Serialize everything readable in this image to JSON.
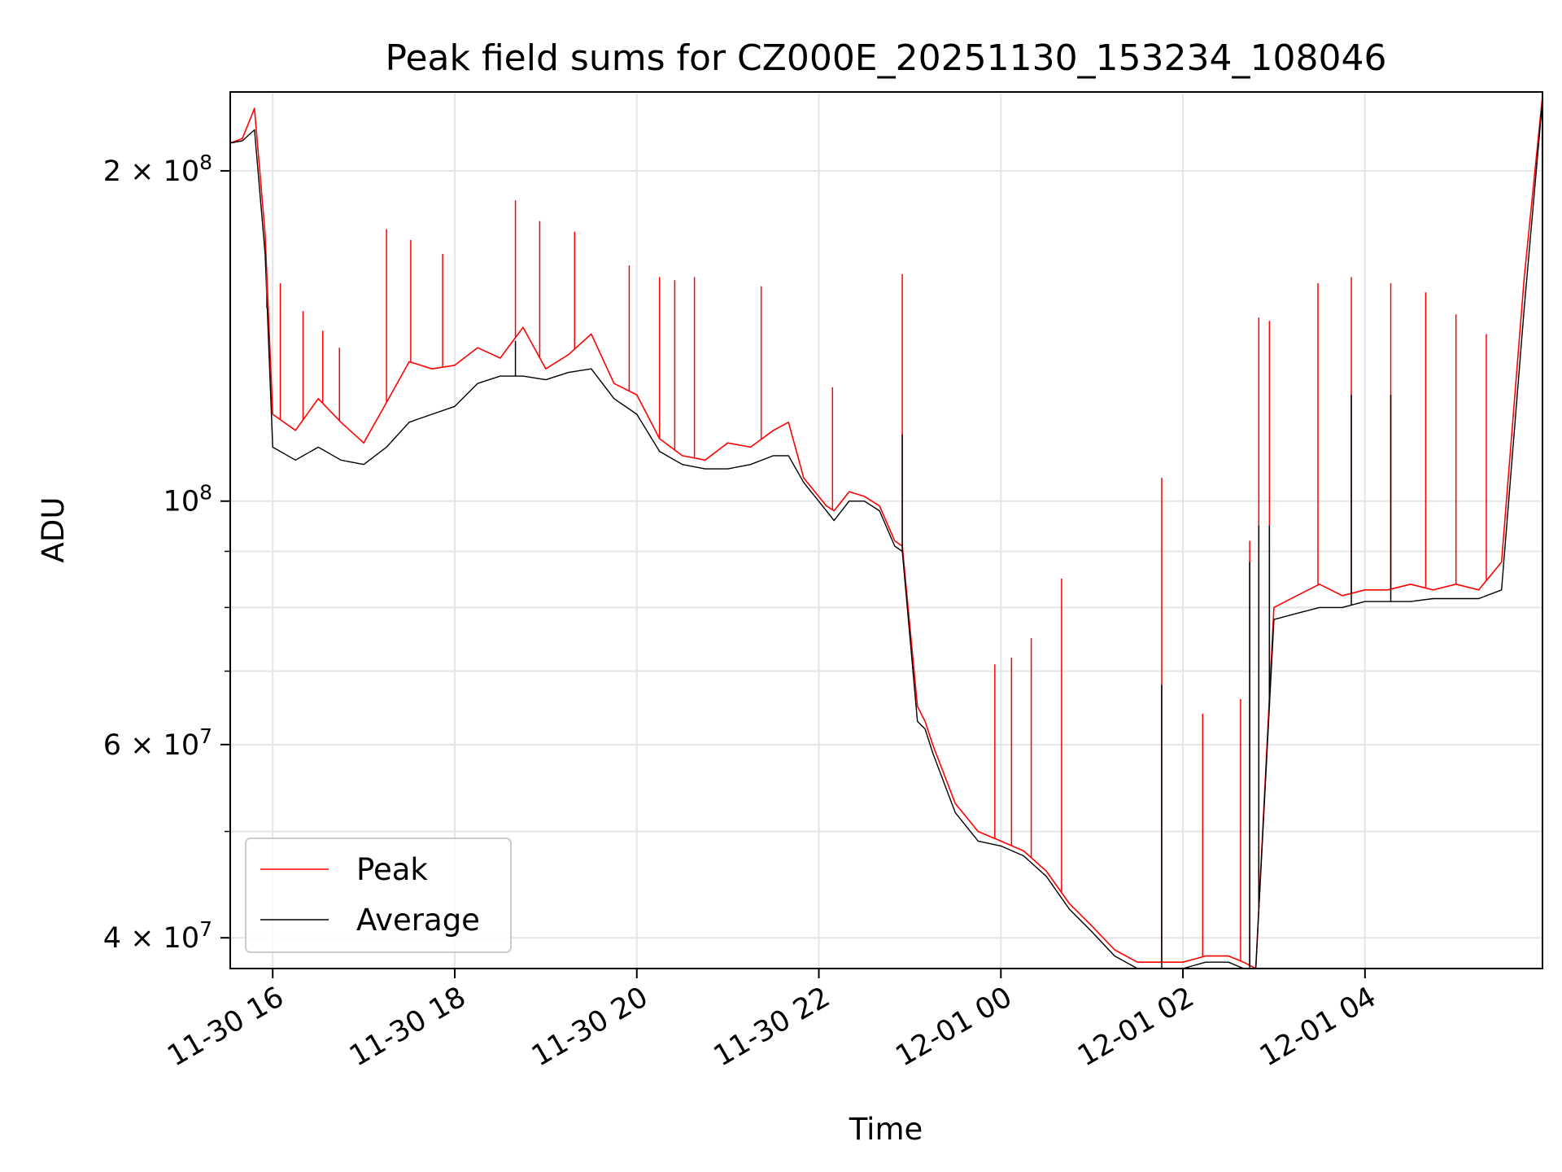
{
  "chart_data": {
    "type": "line",
    "title": "Peak field sums for CZ000E_20251130_153234_108046",
    "xlabel": "Time",
    "ylabel": "ADU",
    "yscale": "log",
    "xlim": [
      "2025-11-30 15:32",
      "2025-12-01 05:57"
    ],
    "ylim": [
      37500000,
      236000000
    ],
    "grid": true,
    "legend_position": "lower-left",
    "x_ticks": [
      {
        "label": "11-30 16",
        "value": "2025-11-30 16:00"
      },
      {
        "label": "11-30 18",
        "value": "2025-11-30 18:00"
      },
      {
        "label": "11-30 20",
        "value": "2025-11-30 20:00"
      },
      {
        "label": "11-30 22",
        "value": "2025-11-30 22:00"
      },
      {
        "label": "12-01 00",
        "value": "2025-12-01 00:00"
      },
      {
        "label": "12-01 02",
        "value": "2025-12-01 02:00"
      },
      {
        "label": "12-01 04",
        "value": "2025-12-01 04:00"
      }
    ],
    "y_major_ticks": [
      {
        "label": "4 × 10^7",
        "base": "4 × 10",
        "exp": "7",
        "value": 40000000
      },
      {
        "label": "6 × 10^7",
        "base": "6 × 10",
        "exp": "7",
        "value": 60000000
      },
      {
        "label": "10^8",
        "base": "10",
        "exp": "8",
        "value": 100000000
      },
      {
        "label": "2 × 10^8",
        "base": "2 × 10",
        "exp": "8",
        "value": 200000000
      }
    ],
    "y_minor_ticks": [
      50000000,
      70000000,
      80000000,
      90000000
    ],
    "series": [
      {
        "name": "Peak",
        "color": "#ff0000",
        "x": [
          "2025-11-30 15:32",
          "2025-11-30 15:40",
          "2025-11-30 15:48",
          "2025-11-30 15:55",
          "2025-11-30 16:00",
          "2025-11-30 16:15",
          "2025-11-30 16:30",
          "2025-11-30 16:45",
          "2025-11-30 17:00",
          "2025-11-30 17:15",
          "2025-11-30 17:30",
          "2025-11-30 17:45",
          "2025-11-30 18:00",
          "2025-11-30 18:15",
          "2025-11-30 18:30",
          "2025-11-30 18:45",
          "2025-11-30 19:00",
          "2025-11-30 19:15",
          "2025-11-30 19:30",
          "2025-11-30 19:45",
          "2025-11-30 20:00",
          "2025-11-30 20:15",
          "2025-11-30 20:30",
          "2025-11-30 20:45",
          "2025-11-30 21:00",
          "2025-11-30 21:15",
          "2025-11-30 21:30",
          "2025-11-30 21:40",
          "2025-11-30 21:50",
          "2025-11-30 22:05",
          "2025-11-30 22:10",
          "2025-11-30 22:20",
          "2025-11-30 22:30",
          "2025-11-30 22:40",
          "2025-11-30 22:50",
          "2025-11-30 22:55",
          "2025-11-30 23:05",
          "2025-11-30 23:10",
          "2025-11-30 23:15",
          "2025-11-30 23:30",
          "2025-11-30 23:45",
          "2025-12-01 00:00",
          "2025-12-01 00:15",
          "2025-12-01 00:30",
          "2025-12-01 00:45",
          "2025-12-01 01:00",
          "2025-12-01 01:15",
          "2025-12-01 01:30",
          "2025-12-01 01:45",
          "2025-12-01 02:00",
          "2025-12-01 02:15",
          "2025-12-01 02:30",
          "2025-12-01 02:40",
          "2025-12-01 02:48",
          "2025-12-01 03:00",
          "2025-12-01 03:15",
          "2025-12-01 03:30",
          "2025-12-01 03:45",
          "2025-12-01 04:00",
          "2025-12-01 04:15",
          "2025-12-01 04:30",
          "2025-12-01 04:45",
          "2025-12-01 05:00",
          "2025-12-01 05:15",
          "2025-12-01 05:30",
          "2025-12-01 05:45",
          "2025-12-01 05:57"
        ],
        "y": [
          212000000,
          214000000,
          228000000,
          175000000,
          120000000,
          116000000,
          124000000,
          118000000,
          113000000,
          123000000,
          134000000,
          132000000,
          133000000,
          138000000,
          135000000,
          144000000,
          132000000,
          136000000,
          142000000,
          128000000,
          125000000,
          114000000,
          110000000,
          109000000,
          113000000,
          112000000,
          116000000,
          118000000,
          105000000,
          99000000,
          98000000,
          102000000,
          101000000,
          99000000,
          92000000,
          91000000,
          65000000,
          63000000,
          60000000,
          53000000,
          50000000,
          49000000,
          48000000,
          46000000,
          43000000,
          41000000,
          39000000,
          38000000,
          38000000,
          38000000,
          38500000,
          38500000,
          38000000,
          37500000,
          80000000,
          82000000,
          84000000,
          82000000,
          83000000,
          83000000,
          84000000,
          83000000,
          84000000,
          83000000,
          88000000,
          160000000,
          234000000
        ]
      },
      {
        "name": "Average",
        "color": "#000000",
        "x": [
          "2025-11-30 15:32",
          "2025-11-30 15:40",
          "2025-11-30 15:48",
          "2025-11-30 15:55",
          "2025-11-30 16:00",
          "2025-11-30 16:15",
          "2025-11-30 16:30",
          "2025-11-30 16:45",
          "2025-11-30 17:00",
          "2025-11-30 17:15",
          "2025-11-30 17:30",
          "2025-11-30 17:45",
          "2025-11-30 18:00",
          "2025-11-30 18:15",
          "2025-11-30 18:30",
          "2025-11-30 18:45",
          "2025-11-30 19:00",
          "2025-11-30 19:15",
          "2025-11-30 19:30",
          "2025-11-30 19:45",
          "2025-11-30 20:00",
          "2025-11-30 20:15",
          "2025-11-30 20:30",
          "2025-11-30 20:45",
          "2025-11-30 21:00",
          "2025-11-30 21:15",
          "2025-11-30 21:30",
          "2025-11-30 21:40",
          "2025-11-30 21:50",
          "2025-11-30 22:05",
          "2025-11-30 22:10",
          "2025-11-30 22:20",
          "2025-11-30 22:30",
          "2025-11-30 22:40",
          "2025-11-30 22:50",
          "2025-11-30 22:55",
          "2025-11-30 23:05",
          "2025-11-30 23:10",
          "2025-11-30 23:15",
          "2025-11-30 23:30",
          "2025-11-30 23:45",
          "2025-12-01 00:00",
          "2025-12-01 00:15",
          "2025-12-01 00:30",
          "2025-12-01 00:45",
          "2025-12-01 01:00",
          "2025-12-01 01:15",
          "2025-12-01 01:30",
          "2025-12-01 01:45",
          "2025-12-01 02:00",
          "2025-12-01 02:15",
          "2025-12-01 02:30",
          "2025-12-01 02:40",
          "2025-12-01 02:48",
          "2025-12-01 03:00",
          "2025-12-01 03:15",
          "2025-12-01 03:30",
          "2025-12-01 03:45",
          "2025-12-01 04:00",
          "2025-12-01 04:15",
          "2025-12-01 04:30",
          "2025-12-01 04:45",
          "2025-12-01 05:00",
          "2025-12-01 05:15",
          "2025-12-01 05:30",
          "2025-12-01 05:45",
          "2025-12-01 05:57"
        ],
        "y": [
          212000000,
          213000000,
          218000000,
          168000000,
          112000000,
          109000000,
          112000000,
          109000000,
          108000000,
          112000000,
          118000000,
          120000000,
          122000000,
          128000000,
          130000000,
          130000000,
          129000000,
          131000000,
          132000000,
          124000000,
          120000000,
          111000000,
          108000000,
          107000000,
          107000000,
          108000000,
          110000000,
          110000000,
          104000000,
          98000000,
          96000000,
          100000000,
          100000000,
          98000000,
          91000000,
          90000000,
          63000000,
          62000000,
          59000000,
          52000000,
          49000000,
          48500000,
          47500000,
          45500000,
          42500000,
          40500000,
          38500000,
          37500000,
          37500000,
          37500000,
          38000000,
          38000000,
          37500000,
          37500000,
          78000000,
          79000000,
          80000000,
          80000000,
          81000000,
          81000000,
          81000000,
          81500000,
          81500000,
          81500000,
          83000000,
          150000000,
          232000000
        ]
      }
    ],
    "spikes": [
      {
        "series": "Peak",
        "at": [
          "2025-11-30 15:56",
          "2025-11-30 16:05",
          "2025-11-30 16:20",
          "2025-11-30 16:33",
          "2025-11-30 16:44",
          "2025-11-30 17:15",
          "2025-11-30 17:31",
          "2025-11-30 17:52",
          "2025-11-30 18:40",
          "2025-11-30 18:56",
          "2025-11-30 19:19",
          "2025-11-30 19:55",
          "2025-11-30 20:15",
          "2025-11-30 20:25",
          "2025-11-30 20:38",
          "2025-11-30 21:22",
          "2025-11-30 22:09",
          "2025-11-30 22:55",
          "2025-11-30 23:56",
          "2025-12-01 00:07",
          "2025-12-01 00:20",
          "2025-12-01 00:40",
          "2025-12-01 01:46",
          "2025-12-01 02:13",
          "2025-12-01 02:38",
          "2025-12-01 02:44",
          "2025-12-01 02:50",
          "2025-12-01 02:57",
          "2025-12-01 03:29",
          "2025-12-01 03:51",
          "2025-12-01 04:17",
          "2025-12-01 04:40",
          "2025-12-01 05:00",
          "2025-12-01 05:20"
        ],
        "peak": [
          150000000,
          158000000,
          149000000,
          143000000,
          138000000,
          177000000,
          173000000,
          168000000,
          188000000,
          180000000,
          176000000,
          164000000,
          160000000,
          159000000,
          160000000,
          157000000,
          127000000,
          161000000,
          71000000,
          72000000,
          75000000,
          85000000,
          105000000,
          64000000,
          66000000,
          92000000,
          147000000,
          146000000,
          158000000,
          160000000,
          158000000,
          155000000,
          148000000,
          142000000
        ]
      },
      {
        "series": "Average",
        "at": [
          "2025-11-30 18:40",
          "2025-11-30 22:55",
          "2025-12-01 01:46",
          "2025-12-01 02:44",
          "2025-12-01 02:50",
          "2025-12-01 02:57",
          "2025-12-01 03:51",
          "2025-12-01 04:17"
        ],
        "peak": [
          140000000,
          115000000,
          68000000,
          88000000,
          95000000,
          95000000,
          125000000,
          125000000
        ]
      }
    ]
  }
}
